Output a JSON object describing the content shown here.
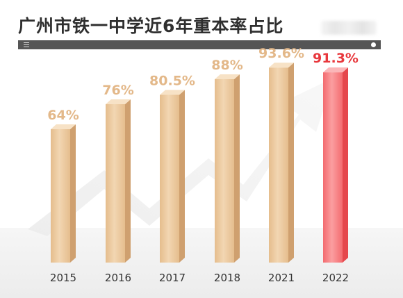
{
  "header": {
    "title": "广州市铁一中学近6年重本率占比"
  },
  "icons": {
    "menu": "menu-lines-icon",
    "dot": "dot-icon",
    "background": "growth-arrow-icon"
  },
  "colors": {
    "bar_gold": "#e8c396",
    "bar_highlight": "#f36b6f",
    "label_gold": "#e3b889",
    "label_highlight": "#e8383d",
    "axis_text": "#333333"
  },
  "chart_data": {
    "type": "bar",
    "title": "广州市铁一中学近6年重本率占比",
    "xlabel": "",
    "ylabel": "",
    "categories": [
      "2015",
      "2016",
      "2017",
      "2018",
      "2021",
      "2022"
    ],
    "values": [
      64,
      76,
      80.5,
      88,
      93.6,
      91.3
    ],
    "value_labels": [
      "64%",
      "76%",
      "80.5%",
      "88%",
      "93.6%",
      "91.3%"
    ],
    "highlight_index": 5,
    "ylim": [
      0,
      100
    ],
    "grid": false,
    "legend": "none"
  }
}
